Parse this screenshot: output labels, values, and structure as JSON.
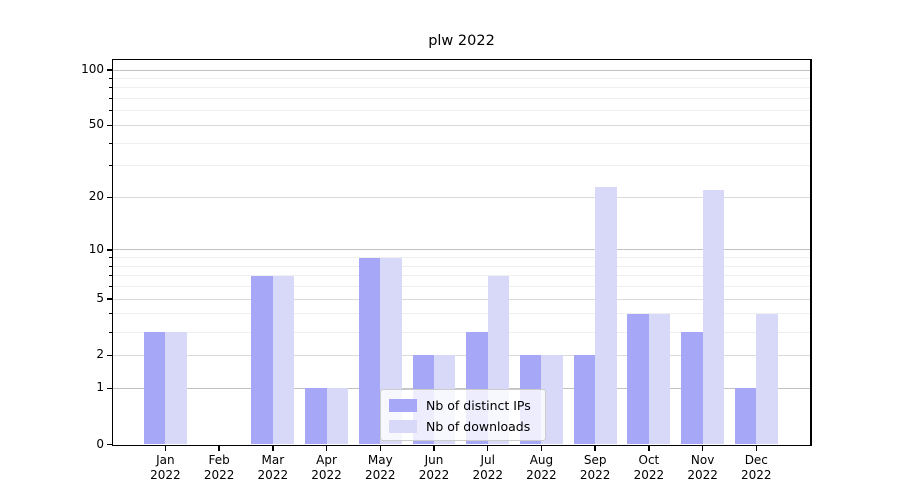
{
  "chart_data": {
    "type": "bar",
    "title": "plw 2022",
    "categories": [
      "Jan",
      "Feb",
      "Mar",
      "Apr",
      "May",
      "Jun",
      "Jul",
      "Aug",
      "Sep",
      "Oct",
      "Nov",
      "Dec"
    ],
    "year_label": "2022",
    "series": [
      {
        "name": "Nb of distinct IPs",
        "color": "#a7a7f7",
        "values": [
          3,
          0,
          7,
          1,
          9,
          2,
          3,
          2,
          2,
          4,
          3,
          1
        ]
      },
      {
        "name": "Nb of downloads",
        "color": "#d8d8f8",
        "values": [
          3,
          0,
          7,
          1,
          9,
          2,
          7,
          2,
          23,
          4,
          22,
          4
        ]
      }
    ],
    "yscale": "log1p",
    "yticks": [
      0,
      1,
      2,
      5,
      10,
      20,
      50,
      100
    ],
    "yticks_minor": [
      3,
      4,
      6,
      7,
      8,
      9,
      30,
      40,
      60,
      70,
      80,
      90
    ],
    "ylim": [
      0,
      113
    ],
    "xlabel": "",
    "ylabel": "",
    "grid": true,
    "legend_position": "lower center"
  }
}
